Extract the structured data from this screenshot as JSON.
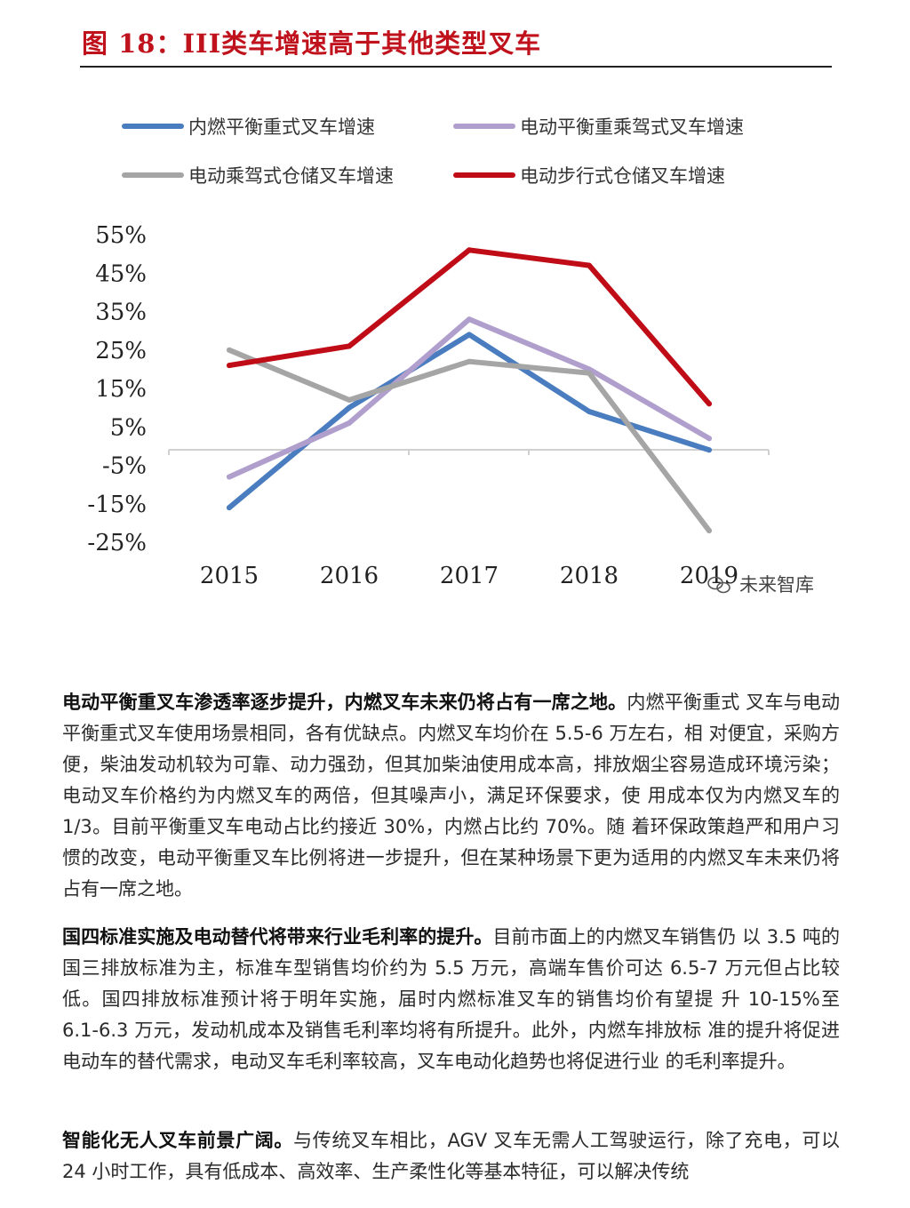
{
  "figure": {
    "title": "图 18：III类车增速高于其他类型叉车",
    "watermark": "未来智库"
  },
  "chart_data": {
    "type": "line",
    "title": "图 18：III类车增速高于其他类型叉车",
    "categories": [
      "2015",
      "2016",
      "2017",
      "2018",
      "2019"
    ],
    "y_ticks": [
      "55%",
      "45%",
      "35%",
      "25%",
      "15%",
      "5%",
      "-5%",
      "-15%",
      "-25%"
    ],
    "ylim": [
      -25,
      55
    ],
    "legend_position": "top",
    "series": [
      {
        "name": "内燃平衡重式叉车增速",
        "color": "#4a7cc0",
        "values": [
          -16,
          10,
          29,
          9,
          -1
        ]
      },
      {
        "name": "电动平衡重乘驾式叉车增速",
        "color": "#b09fcc",
        "values": [
          -8,
          6,
          33,
          20,
          2
        ]
      },
      {
        "name": "电动乘驾式仓储叉车增速",
        "color": "#a5a5a5",
        "values": [
          25,
          12,
          22,
          19,
          -22
        ]
      },
      {
        "name": "电动步行式仓储叉车增速",
        "color": "#c00c16",
        "values": [
          21,
          26,
          51,
          47,
          11
        ]
      }
    ]
  },
  "paragraphs": [
    {
      "lead": "电动平衡重叉车渗透率逐步提升，内燃叉车未来仍将占有一席之地。",
      "body": "内燃平衡重式 叉车与电动平衡重式叉车使用场景相同，各有优缺点。内燃叉车均价在 5.5-6 万左右，相 对便宜，采购方便，柴油发动机较为可靠、动力强劲，但其加柴油使用成本高，排放烟尘容易造成环境污染；电动叉车价格约为内燃叉车的两倍，但其噪声小，满足环保要求，使 用成本仅为内燃叉车的 1/3。目前平衡重叉车电动占比约接近 30%，内燃占比约 70%。随 着环保政策趋严和用户习惯的改变，电动平衡重叉车比例将进一步提升，但在某种场景下更为适用的内燃叉车未来仍将占有一席之地。"
    },
    {
      "lead": "国四标准实施及电动替代将带来行业毛利率的提升。",
      "body": "目前市面上的内燃叉车销售仍 以 3.5 吨的国三排放标准为主，标准车型销售均价约为 5.5 万元，高端车售价可达 6.5-7 万元但占比较低。国四排放标准预计将于明年实施，届时内燃标准叉车的销售均价有望提 升 10-15%至 6.1-6.3 万元，发动机成本及销售毛利率均将有所提升。此外，内燃车排放标 准的提升将促进电动车的替代需求，电动叉车毛利率较高，叉车电动化趋势也将促进行业 的毛利率提升。"
    },
    {
      "lead": "智能化无人叉车前景广阔。",
      "body": "与传统叉车相比，AGV 叉车无需人工驾驶运行，除了充电，可以 24 小时工作，具有低成本、高效率、生产柔性化等基本特征，可以解决传统"
    }
  ]
}
